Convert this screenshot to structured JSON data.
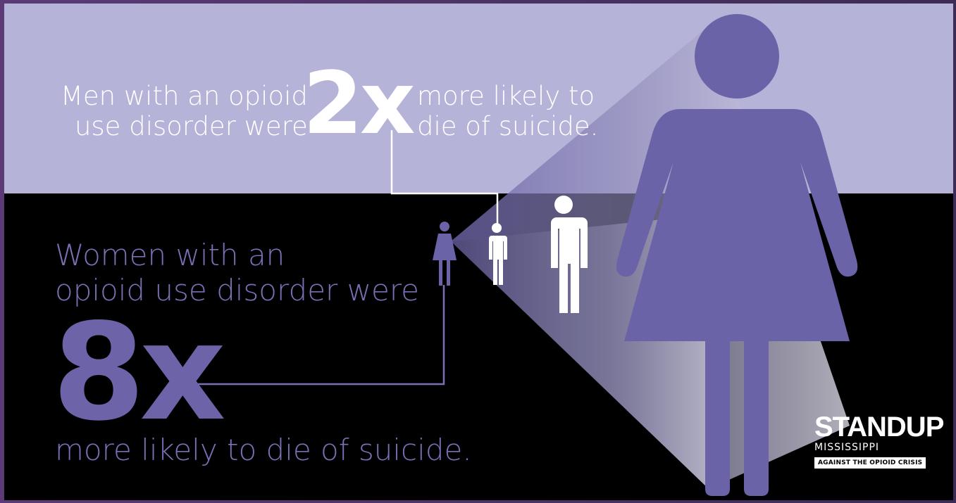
{
  "men": {
    "lead": "Men with an opioid\nuse disorder were",
    "multiplier": "2x",
    "tail": "more likely to\ndie of suicide."
  },
  "women": {
    "lead": "Women with an\nopioid use disorder were",
    "multiplier": "8x",
    "tail": "more likely to die of suicide."
  },
  "logo": {
    "stand_up": "STANDUP",
    "state": "MISSISSIPPI",
    "tagline": "AGAINST THE OPIOID CRISIS"
  },
  "colors": {
    "top_band": "#b6b3d9",
    "bottom_band": "#000000",
    "purple_figure": "#6b63a8",
    "accent_text": "#7b70b6",
    "white": "#ffffff"
  },
  "icons": [
    "woman-figure-small",
    "man-figure-small",
    "man-figure-medium",
    "woman-figure-large",
    "projection-cone"
  ]
}
